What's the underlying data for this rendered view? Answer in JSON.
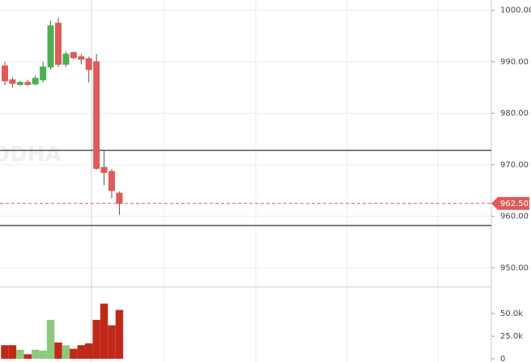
{
  "chart_data": {
    "type": "candlestick",
    "watermark": "ODHA",
    "open": [
      989.2,
      986.5,
      985.6,
      986.0,
      985.7,
      986.5,
      989.0,
      997.5,
      989.5,
      991.8,
      991.0,
      990.6,
      990.0,
      969.5,
      968.7,
      964.5
    ],
    "high": [
      990.0,
      987.0,
      986.3,
      986.5,
      987.3,
      990.0,
      998.0,
      998.5,
      992.0,
      992.0,
      991.5,
      991.0,
      991.5,
      972.8,
      969.2,
      964.8
    ],
    "low": [
      985.5,
      985.0,
      985.3,
      985.3,
      985.4,
      986.0,
      988.5,
      989.0,
      989.0,
      990.5,
      989.5,
      986.0,
      969.0,
      966.0,
      963.5,
      960.3
    ],
    "close": [
      986.3,
      985.8,
      986.0,
      985.6,
      986.8,
      989.0,
      997.0,
      989.5,
      991.5,
      990.8,
      990.5,
      988.5,
      969.3,
      968.5,
      965.0,
      962.5
    ],
    "volume": [
      15000,
      15000,
      10000,
      5000,
      10000,
      9000,
      43000,
      18000,
      15000,
      11000,
      15000,
      17000,
      43000,
      61000,
      37000,
      54000
    ],
    "up_color": "#4caf50",
    "down_color": "#e05a5a",
    "volume_up_color": "#8cc97a",
    "volume_down_color": "#c0291a",
    "ylim": [
      946.3,
      1002.0
    ],
    "yticks": [
      {
        "value": 1000,
        "label": "1000.00"
      },
      {
        "value": 990,
        "label": "990.00"
      },
      {
        "value": 980,
        "label": "980.00"
      },
      {
        "value": 970,
        "label": "970.00"
      },
      {
        "value": 960,
        "label": "960.00"
      },
      {
        "value": 950,
        "label": "950.00"
      }
    ],
    "volume_lim": [
      0,
      79500
    ],
    "volume_ticks": [
      {
        "value": 50000,
        "label": "50.0k"
      },
      {
        "value": 25000,
        "label": "25.0k"
      },
      0
    ],
    "hlines": [
      972.8,
      958.2
    ],
    "last_price": {
      "value": 962.5,
      "label": "962.50"
    },
    "grid": true
  }
}
